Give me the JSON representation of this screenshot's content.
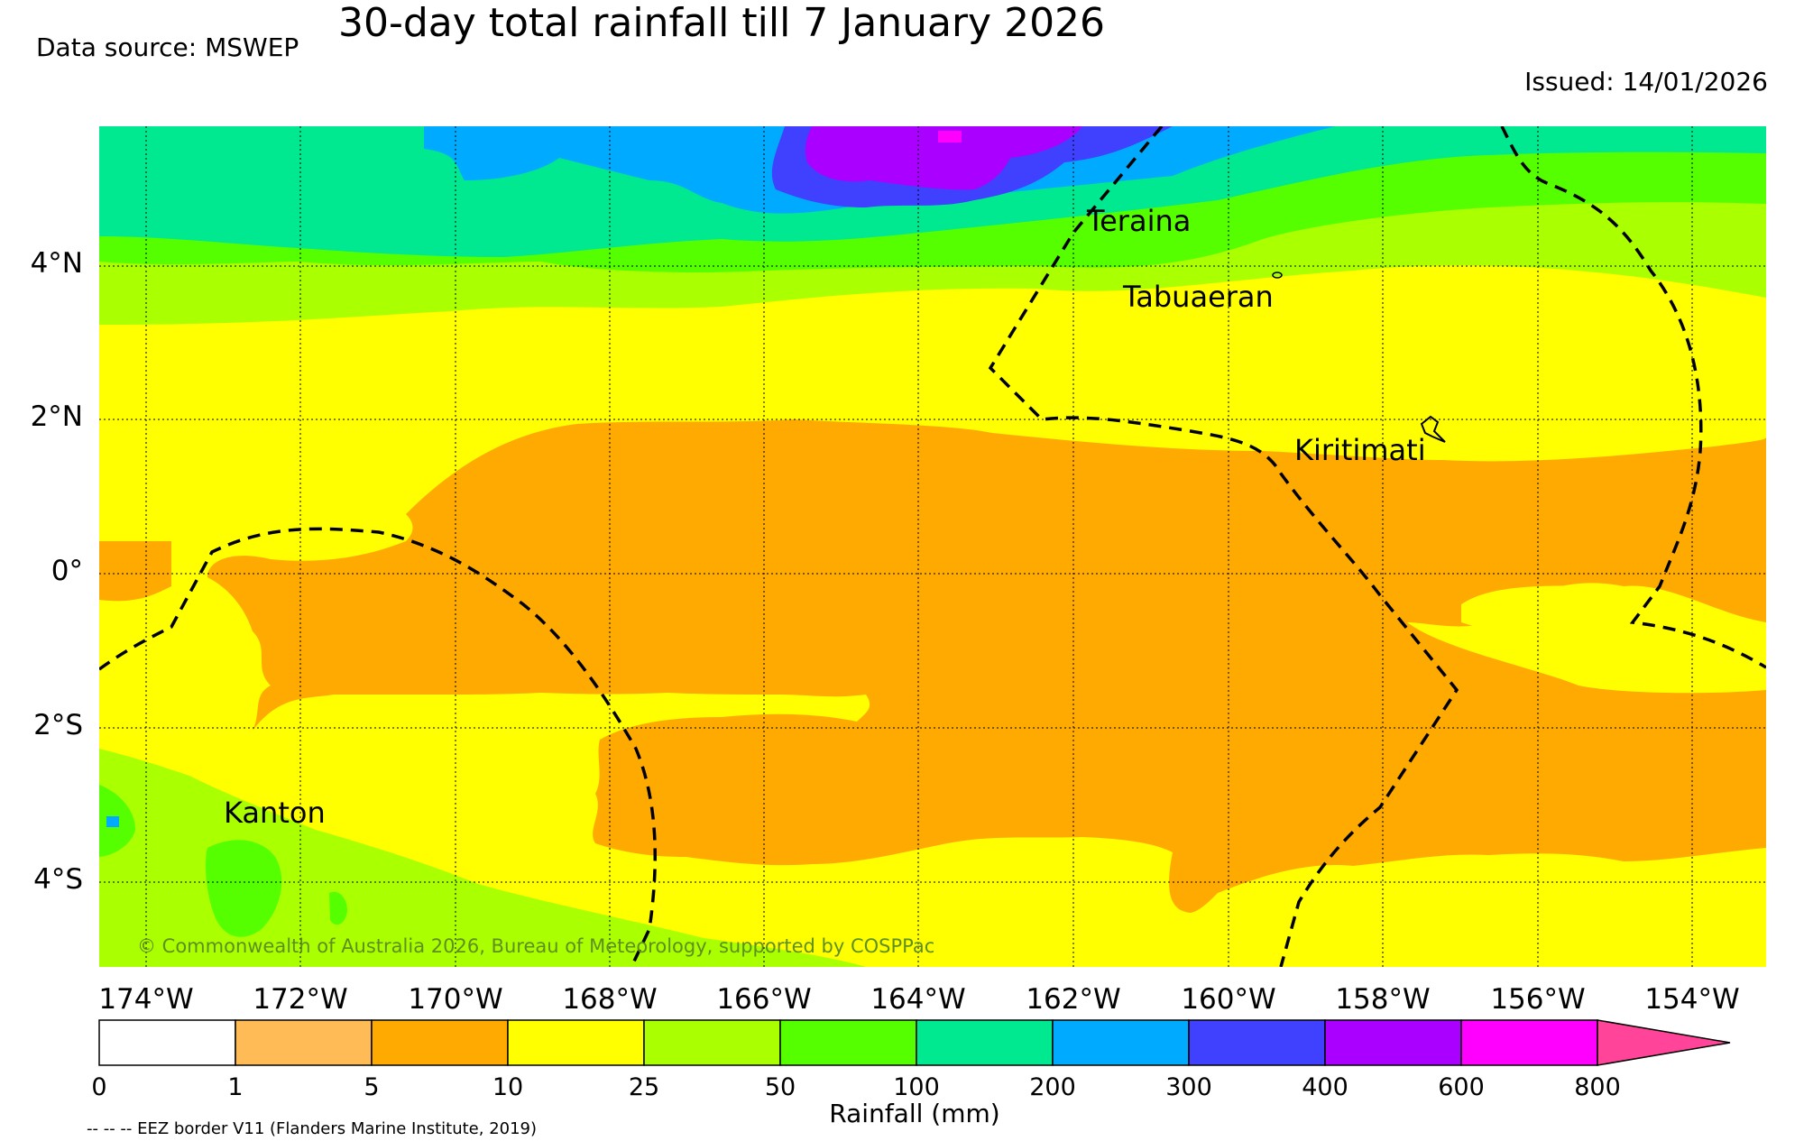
{
  "title": "30-day total rainfall till 7 January 2026",
  "data_source": "Data source: MSWEP",
  "issued": "Issued: 14/01/2026",
  "copyright": "© Commonwealth of Australia 2026, Bureau of Meteorology, supported by COSPPac",
  "eez_note": "-- -- -- EEZ border V11 (Flanders Marine Institute, 2019)",
  "lat_labels": [
    "4°N",
    "2°N",
    "0°",
    "2°S",
    "4°S"
  ],
  "lon_labels": [
    "174°W",
    "172°W",
    "170°W",
    "168°W",
    "166°W",
    "164°W",
    "162°W",
    "160°W",
    "158°W",
    "156°W",
    "154°W"
  ],
  "places": [
    "Teraina",
    "Tabuaeran",
    "Kiritimati",
    "Kanton"
  ],
  "colorbar": {
    "title": "Rainfall (mm)",
    "tick_labels": [
      "0",
      "1",
      "5",
      "10",
      "25",
      "50",
      "100",
      "200",
      "300",
      "400",
      "600",
      "800"
    ],
    "colors": [
      "#ffffff",
      "#ffbb55",
      "#ffaa00",
      "#ffff00",
      "#aaff00",
      "#55ff00",
      "#00e890",
      "#00aaff",
      "#4040ff",
      "#aa00ff",
      "#ff00ff",
      "#ff4499"
    ]
  }
}
